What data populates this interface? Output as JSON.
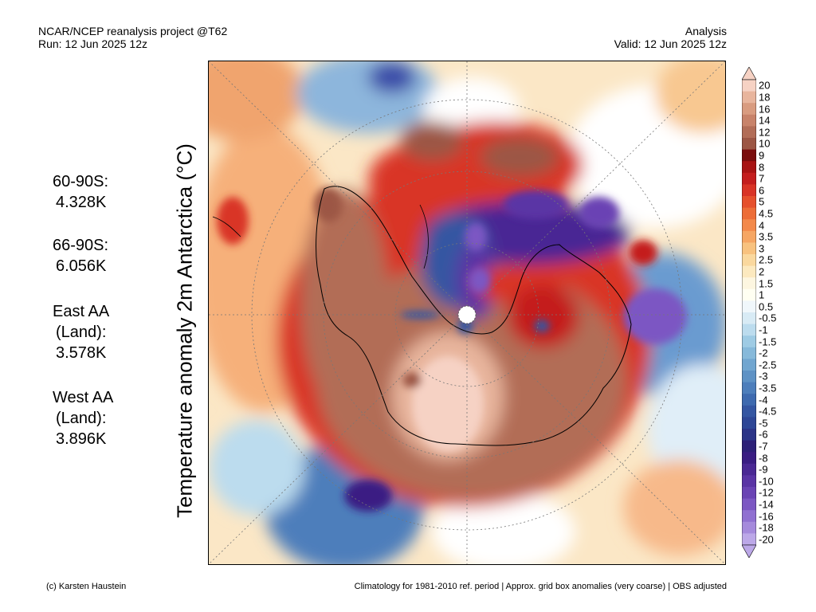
{
  "header": {
    "left_line1": "NCAR/NCEP reanalysis project @T62",
    "left_line2": "Run: 12 Jun 2025 12z",
    "right_line1": "Analysis",
    "right_line2": "Valid: 12 Jun 2025 12z"
  },
  "variable_title": "Temperature anomaly 2m Antarctica (°C)",
  "stats": [
    {
      "label_lines": [
        "60-90S:"
      ],
      "value": "4.328K"
    },
    {
      "label_lines": [
        "66-90S:"
      ],
      "value": "6.056K"
    },
    {
      "label_lines": [
        "East AA",
        "(Land):"
      ],
      "value": "3.578K"
    },
    {
      "label_lines": [
        "West AA",
        "(Land):"
      ],
      "value": "3.896K"
    }
  ],
  "colorbar": {
    "labels": [
      "20",
      "18",
      "16",
      "14",
      "12",
      "10",
      "9",
      "8",
      "7",
      "6",
      "5",
      "4.5",
      "4",
      "3.5",
      "3",
      "2.5",
      "2",
      "1.5",
      "1",
      "0.5",
      "-0.5",
      "-1",
      "-1.5",
      "-2",
      "-2.5",
      "-3",
      "-3.5",
      "-4",
      "-4.5",
      "-5",
      "-6",
      "-7",
      "-8",
      "-9",
      "-10",
      "-12",
      "-14",
      "-16",
      "-18",
      "-20"
    ],
    "colors": [
      "#f6d2c4",
      "#e8b59d",
      "#d99c80",
      "#c8836a",
      "#b26d57",
      "#9c5644",
      "#7a0d0d",
      "#a81414",
      "#c41e1e",
      "#d93426",
      "#e6502c",
      "#ed6d37",
      "#f3894a",
      "#f6a663",
      "#f8c27f",
      "#fad89e",
      "#fce9bf",
      "#fdf6e0",
      "#fffff2",
      "#f0f7fb",
      "#d8ebf5",
      "#bcdcee",
      "#9ecbe4",
      "#86b9da",
      "#71a6d0",
      "#5e92c5",
      "#4d7ebb",
      "#3e6aaf",
      "#3456a2",
      "#2d4696",
      "#2b3488",
      "#2d2078",
      "#3a1d83",
      "#4a2894",
      "#5a34a5",
      "#6a43b4",
      "#7c57c3",
      "#9070d1",
      "#a58adc",
      "#bca8e8"
    ]
  },
  "footer": {
    "left": "(c) Karsten Haustein",
    "right": "Climatology for 1981-2010 ref. period | Approx. grid box anomalies (very coarse) | OBS adjusted"
  }
}
